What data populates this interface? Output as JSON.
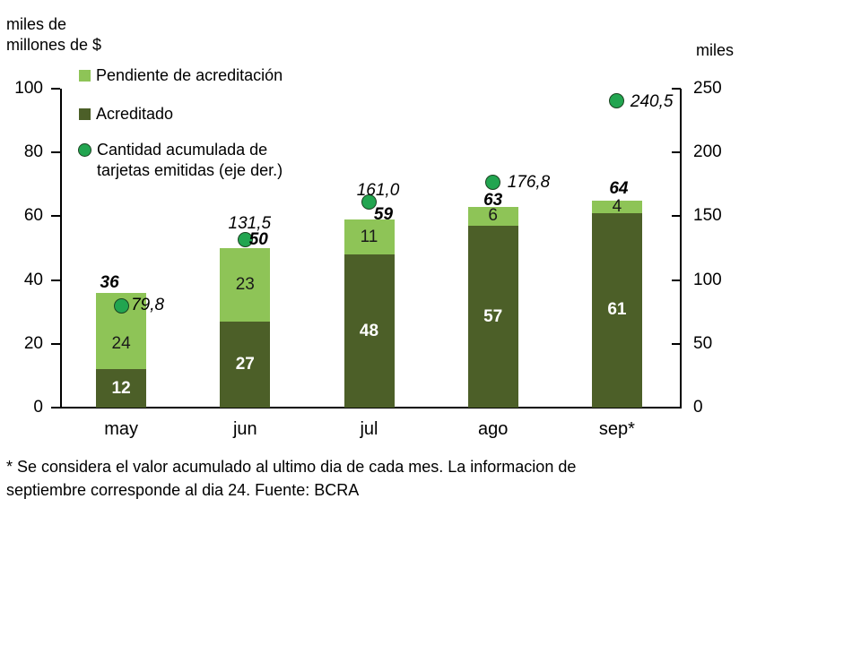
{
  "chart": {
    "left_axis_title": "miles de\nmillones de $",
    "right_axis_title": "miles"
  },
  "legend": {
    "items": [
      {
        "label": "Pendiente de acreditación",
        "marker": "square",
        "color": "#8EC457"
      },
      {
        "label": "Acreditado",
        "marker": "square",
        "color": "#4C5F28"
      },
      {
        "label": "Cantidad acumulada de\ntarjetas emitidas (eje der.)",
        "marker": "circle",
        "color": "#22A550",
        "outline": "#1C4422"
      }
    ]
  },
  "chart_data": {
    "type": "bar",
    "stacked": true,
    "grid": false,
    "legend_position": "top-left",
    "categories": [
      "may",
      "jun",
      "jul",
      "ago",
      "sep*"
    ],
    "series": [
      {
        "name": "Acreditado",
        "type": "bar",
        "axis": "left",
        "color": "#4C5F28",
        "label_color": "#ffffff",
        "values": [
          12,
          27,
          48,
          57,
          61
        ]
      },
      {
        "name": "Pendiente de acreditación",
        "type": "bar",
        "axis": "left",
        "color": "#8EC457",
        "label_color": "#1a1a1a",
        "values": [
          24,
          23,
          11,
          6,
          4
        ]
      },
      {
        "name": "Cantidad acumulada de tarjetas emitidas (eje der.)",
        "type": "point",
        "axis": "right",
        "color": "#22A550",
        "outline": "#1C4422",
        "values": [
          79.8,
          131.5,
          161.0,
          176.8,
          240.5
        ],
        "value_labels": [
          "79,8",
          "131,5",
          "161,0",
          "176,8",
          "240,5"
        ]
      }
    ],
    "totals": [
      36,
      50,
      59,
      63,
      64
    ],
    "left_axis": {
      "label": "miles de millones de $",
      "min": 0,
      "max": 100,
      "ticks": [
        0,
        20,
        40,
        60,
        80,
        100
      ]
    },
    "right_axis": {
      "label": "miles",
      "min": 0,
      "max": 250,
      "ticks": [
        0,
        50,
        100,
        150,
        200,
        250
      ]
    }
  },
  "footnote": "* Se considera el valor acumulado al ultimo dia de cada mes. La informacion de\nseptiembre corresponde al dia 24. Fuente: BCRA"
}
